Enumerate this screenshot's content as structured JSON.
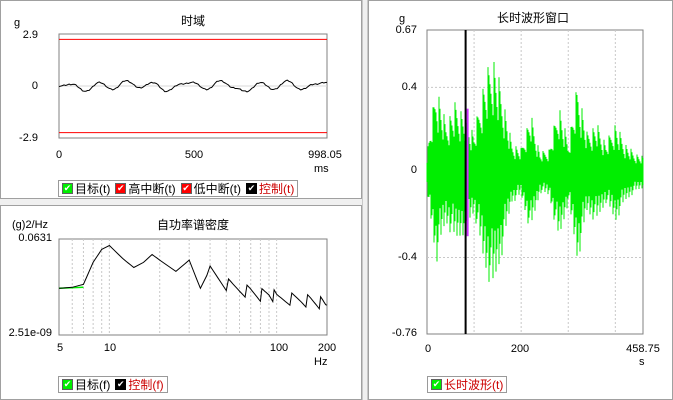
{
  "colors": {
    "green": "#00ee00",
    "red": "#ff0000",
    "black": "#000000",
    "magenta": "#cc33ff",
    "legend_red_text": "#cc0000"
  },
  "time_panel": {
    "title": "时域",
    "y_unit": "g",
    "x_unit": "ms",
    "legend": [
      {
        "label": "目标(t)",
        "check": "green",
        "text": "black"
      },
      {
        "label": "高中断(t)",
        "check": "red",
        "text": "black"
      },
      {
        "label": "低中断(t)",
        "check": "red",
        "text": "black"
      },
      {
        "label": "控制(t)",
        "check": "black",
        "text": "red"
      }
    ]
  },
  "psd_panel": {
    "title": "自功率谱密度",
    "y_unit": "(g)2/Hz",
    "x_unit": "Hz",
    "legend": [
      {
        "label": "目标(f)",
        "check": "green",
        "text": "black"
      },
      {
        "label": "控制(f)",
        "check": "black",
        "text": "red"
      }
    ]
  },
  "long_panel": {
    "title": "长时波形窗口",
    "y_unit": "g",
    "x_unit": "s",
    "legend": [
      {
        "label": "长时波形(t)",
        "check": "green",
        "text": "red"
      }
    ]
  },
  "chart_data": [
    {
      "type": "line",
      "title": "时域",
      "ylabel": "g",
      "xlabel": "ms",
      "xlim": [
        0,
        998.05
      ],
      "ylim": [
        -2.9,
        2.9
      ],
      "x_tick_labels": [
        "0",
        "500",
        "998.05"
      ],
      "y_tick_labels": [
        "2.9",
        "0",
        "-2.9"
      ],
      "series": [
        {
          "name": "高中断(t)",
          "x": [
            0,
            998.05
          ],
          "values": [
            2.6,
            2.6
          ]
        },
        {
          "name": "低中断(t)",
          "x": [
            0,
            998.05
          ],
          "values": [
            -2.6,
            -2.6
          ]
        },
        {
          "name": "控制(t)",
          "x": [
            0,
            50,
            100,
            150,
            200,
            250,
            300,
            350,
            400,
            450,
            500,
            550,
            600,
            650,
            700,
            750,
            800,
            850,
            900,
            950,
            998.05
          ],
          "values": [
            0,
            0.1,
            -0.3,
            0.2,
            -0.2,
            0.3,
            -0.1,
            0.2,
            -0.3,
            0.1,
            0.2,
            -0.2,
            0.3,
            -0.1,
            -0.3,
            0.2,
            -0.2,
            0.3,
            -0.2,
            0.1,
            0.2
          ]
        }
      ]
    },
    {
      "type": "line",
      "title": "自功率谱密度",
      "ylabel": "(g)2/Hz",
      "xlabel": "Hz",
      "xscale": "log",
      "yscale": "log",
      "xlim": [
        5,
        200
      ],
      "y_tick_labels": [
        "0.0631",
        "2.51e-09"
      ],
      "ylim": [
        2.51e-09,
        0.0631
      ],
      "x_tick_labels": [
        "5",
        "10",
        "100",
        "200"
      ],
      "series": [
        {
          "name": "目标(f)",
          "x": [
            5,
            7
          ],
          "values": [
            1e-05,
            1.2e-05
          ]
        },
        {
          "name": "控制(f)",
          "x": [
            5,
            6,
            7,
            8,
            9,
            10,
            12,
            14,
            16,
            18,
            20,
            25,
            30,
            35,
            40,
            50,
            60,
            70,
            80,
            90,
            100,
            120,
            140,
            160,
            180,
            200
          ],
          "values": [
            1e-05,
            1.2e-05,
            2e-05,
            0.001,
            0.01,
            0.02,
            0.002,
            0.0004,
            0.001,
            0.004,
            0.0015,
            0.0002,
            0.0015,
            1e-05,
            0.0003,
            2e-05,
            8e-06,
            5e-06,
            3e-06,
            4e-06,
            2e-06,
            1.5e-06,
            1.2e-06,
            1e-06,
            8e-07,
            5e-07
          ]
        }
      ]
    },
    {
      "type": "line",
      "title": "长时波形窗口",
      "ylabel": "g",
      "xlabel": "s",
      "xlim": [
        0,
        458.75
      ],
      "ylim": [
        -0.76,
        0.67
      ],
      "x_tick_labels": [
        "0",
        "200",
        "458.75"
      ],
      "y_tick_labels": [
        "0.67",
        "0.4",
        "0",
        "-0.4",
        "-0.76"
      ],
      "cursor_x": 82,
      "series": [
        {
          "name": "长时波形(t)",
          "envelope_x": [
            0,
            20,
            40,
            60,
            80,
            100,
            120,
            140,
            160,
            180,
            200,
            220,
            240,
            260,
            280,
            300,
            320,
            340,
            360,
            380,
            400,
            420,
            440,
            458.75
          ],
          "envelope_max": [
            0.1,
            0.45,
            0.25,
            0.35,
            0.3,
            0.2,
            0.45,
            0.6,
            0.4,
            0.15,
            0.12,
            0.3,
            0.1,
            0.12,
            0.35,
            0.15,
            0.45,
            0.2,
            0.25,
            0.15,
            0.25,
            0.15,
            0.1,
            0.08
          ],
          "envelope_min": [
            -0.1,
            -0.45,
            -0.25,
            -0.35,
            -0.3,
            -0.2,
            -0.45,
            -0.6,
            -0.4,
            -0.15,
            -0.12,
            -0.3,
            -0.1,
            -0.12,
            -0.35,
            -0.15,
            -0.45,
            -0.2,
            -0.25,
            -0.15,
            -0.25,
            -0.15,
            -0.1,
            -0.08
          ]
        }
      ]
    }
  ]
}
